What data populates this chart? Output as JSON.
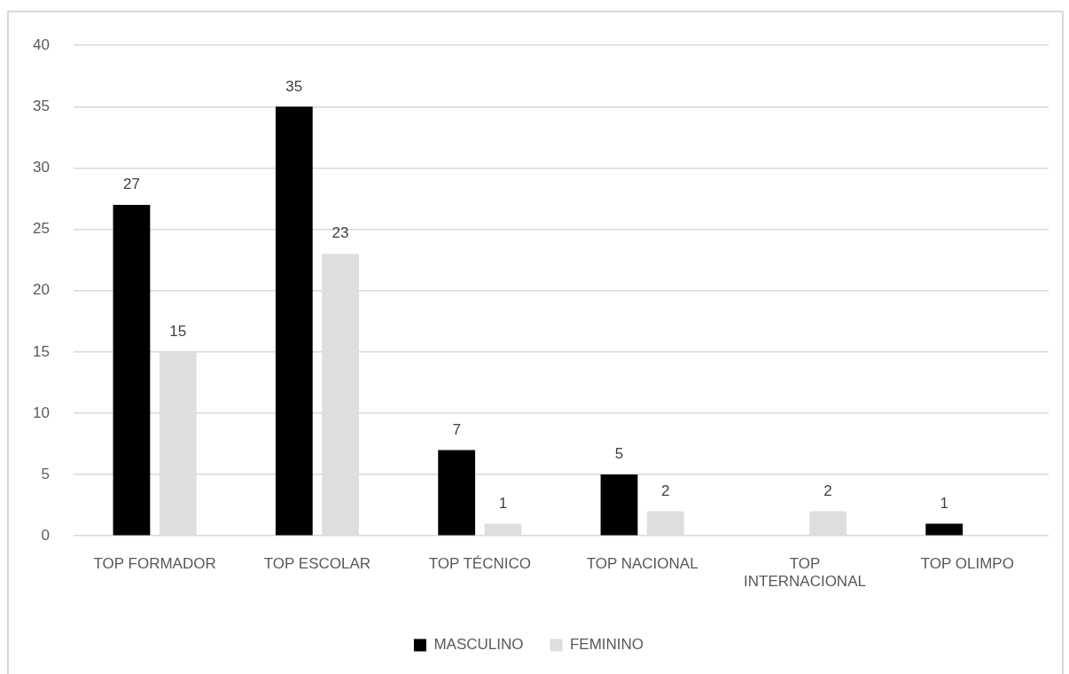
{
  "chart_data": {
    "type": "bar",
    "categories": [
      "TOP FORMADOR",
      "TOP ESCOLAR",
      "TOP TÉCNICO",
      "TOP NACIONAL",
      "TOP INTERNACIONAL",
      "TOP OLIMPO"
    ],
    "series": [
      {
        "name": "MASCULINO",
        "color": "#000000",
        "values": [
          27,
          35,
          7,
          5,
          null,
          1
        ]
      },
      {
        "name": "FEMININO",
        "color": "#dedede",
        "values": [
          15,
          23,
          1,
          2,
          2,
          null
        ]
      }
    ],
    "ylim": [
      0,
      40
    ],
    "yticks": [
      0,
      5,
      10,
      15,
      20,
      25,
      30,
      35,
      40
    ],
    "grid": "y",
    "legend": "bottom",
    "data_labels": true
  }
}
